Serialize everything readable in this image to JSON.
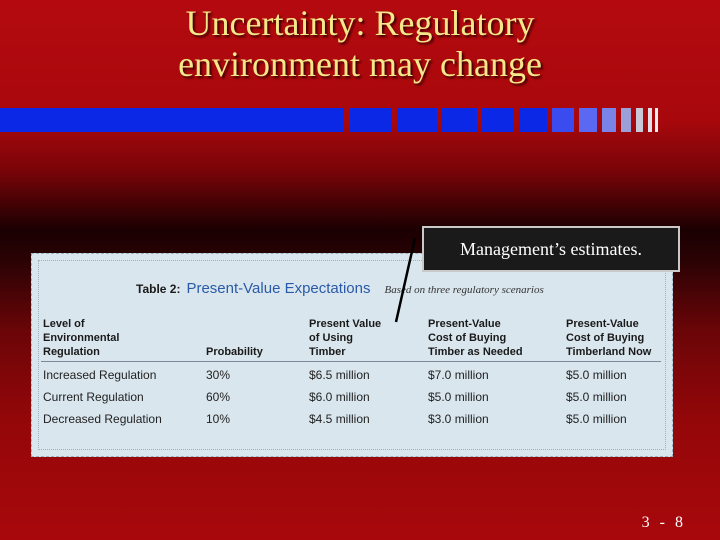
{
  "slide": {
    "title_line1": "Uncertainty: Regulatory",
    "title_line2": "environment may change",
    "callout": "Management’s estimates.",
    "slide_number": "3 - 8",
    "colors": {
      "background": "#a8080c",
      "title": "#f5e88a",
      "bar": "#0a28e6"
    }
  },
  "table": {
    "number": "Table 2:",
    "name": "Present-Value Expectations",
    "note": "Based on three regulatory scenarios",
    "headers": [
      "Level of\nEnvironmental\nRegulation",
      "Probability",
      "Present Value\nof Using\nTimber",
      "Present-Value\nCost of Buying\nTimber as Needed",
      "Present-Value\nCost of Buying\nTimberland Now"
    ],
    "rows": [
      [
        "Increased Regulation",
        "30%",
        "$6.5 million",
        "$7.0 million",
        "$5.0 million"
      ],
      [
        "Current Regulation",
        "60%",
        "$6.0 million",
        "$5.0 million",
        "$5.0 million"
      ],
      [
        "Decreased Regulation",
        "10%",
        "$4.5 million",
        "$3.0 million",
        "$5.0 million"
      ]
    ]
  }
}
